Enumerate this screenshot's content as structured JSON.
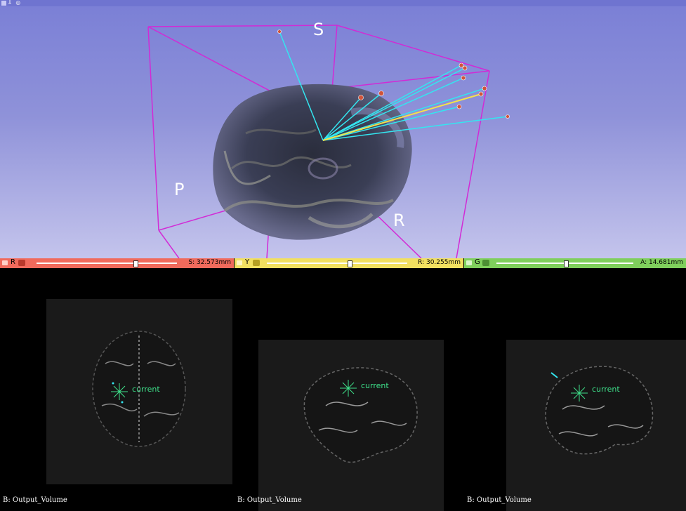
{
  "view3d": {
    "layout_number": "1",
    "orientation": {
      "superior": "S",
      "posterior": "P",
      "right": "R"
    },
    "colors": {
      "background_top": "#7a7fd6",
      "background_bottom": "#c4c4ec",
      "box": "#d22ad6",
      "lines": "#33e6f0",
      "marker": "#d0533a"
    }
  },
  "slices": [
    {
      "letter": "R",
      "color": "#f06a5c",
      "value": "S: 32.573mm",
      "slider_fraction": 0.72,
      "caption": "B: Output_Volume",
      "cursor_label": "current"
    },
    {
      "letter": "Y",
      "color": "#f2e060",
      "value": "R: 30.255mm",
      "slider_fraction": 0.6,
      "caption": "B: Output_Volume",
      "cursor_label": "current"
    },
    {
      "letter": "G",
      "color": "#7fcf5c",
      "value": "A: 14.681mm",
      "slider_fraction": 0.5,
      "caption": "B: Output_Volume",
      "cursor_label": "current"
    }
  ]
}
